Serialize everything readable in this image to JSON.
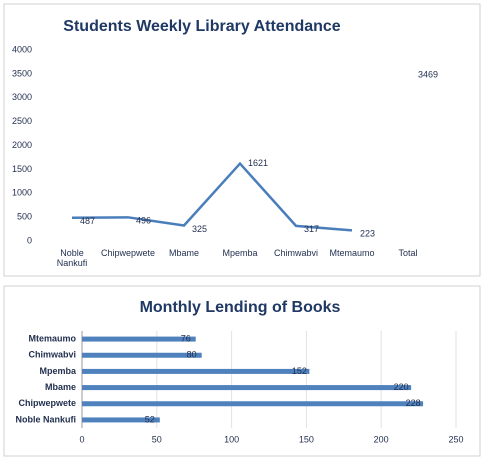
{
  "chart_data": [
    {
      "type": "line",
      "title": "Students Weekly Library Attendance",
      "categories": [
        "Noble Nankufi",
        "Chipwepwete",
        "Mbame",
        "Mpemba",
        "Chimwabvi",
        "Mtemaumo",
        "Total"
      ],
      "values": [
        487,
        496,
        325,
        1621,
        317,
        223,
        3469
      ],
      "color": "#4a7ebb",
      "ylim": [
        0,
        4000
      ],
      "yticks": [
        0,
        500,
        1000,
        1500,
        2000,
        2500,
        3000,
        3500,
        4000
      ],
      "grid": false
    },
    {
      "type": "hbar",
      "title": "Monthly Lending of Books",
      "categories": [
        "Mtemaumo",
        "Chimwabvi",
        "Mpemba",
        "Mbame",
        "Chipwepwete",
        "Noble Nankufi"
      ],
      "values": [
        76,
        80,
        152,
        220,
        228,
        52
      ],
      "color": "#4f81bd",
      "xlim": [
        0,
        250
      ],
      "xticks": [
        0,
        50,
        100,
        150,
        200,
        250
      ],
      "grid": true
    }
  ]
}
